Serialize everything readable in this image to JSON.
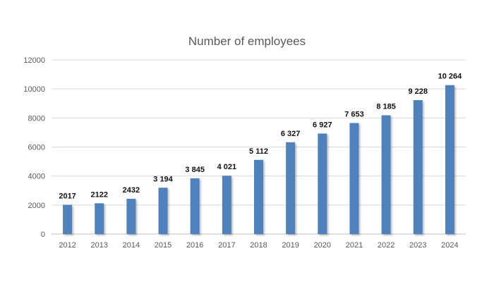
{
  "chart_data": {
    "type": "bar",
    "title": "Number of employees",
    "xlabel": "",
    "ylabel": "",
    "categories": [
      "2012",
      "2013",
      "2014",
      "2015",
      "2016",
      "2017",
      "2018",
      "2019",
      "2020",
      "2021",
      "2022",
      "2023",
      "2024"
    ],
    "values": [
      2017,
      2122,
      2432,
      3194,
      3845,
      4021,
      5112,
      6327,
      6927,
      7653,
      8185,
      9228,
      10264
    ],
    "data_labels": [
      "2017",
      "2122",
      "2432",
      "3 194",
      "3 845",
      "4 021",
      "5 112",
      "6 327",
      "6 927",
      "7 653",
      "8 185",
      "9 228",
      "10 264"
    ],
    "ylim": [
      0,
      12000
    ],
    "y_ticks": [
      0,
      2000,
      4000,
      6000,
      8000,
      10000,
      12000
    ],
    "y_tick_labels": [
      "0",
      "2000",
      "4000",
      "6000",
      "8000",
      "10000",
      "12000"
    ],
    "grid": true,
    "legend": "none",
    "bar_color": "#4f81bd"
  }
}
